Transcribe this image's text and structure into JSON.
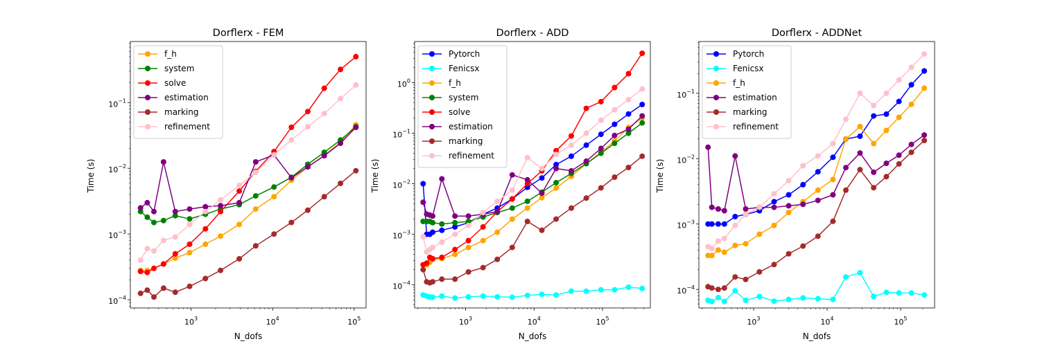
{
  "figure": {
    "background": "#ffffff"
  },
  "chart_data": [
    {
      "type": "line",
      "title": "Dorflerx - FEM",
      "xlabel": "N_dofs",
      "ylabel": "Time (s)",
      "xscale": "log",
      "yscale": "log",
      "xlim": [
        180,
        140000
      ],
      "ylim": [
        7.5e-05,
        0.85
      ],
      "xticks": [
        {
          "v": 1000,
          "label": "10^3"
        },
        {
          "v": 10000,
          "label": "10^4"
        },
        {
          "v": 100000,
          "label": "10^5"
        }
      ],
      "yticks": [
        {
          "v": 0.0001,
          "label": "10^-4"
        },
        {
          "v": 0.001,
          "label": "10^-3"
        },
        {
          "v": 0.01,
          "label": "10^-2"
        },
        {
          "v": 0.1,
          "label": "10^-1"
        }
      ],
      "legend": "top-left",
      "x": [
        240,
        290,
        350,
        460,
        640,
        960,
        1500,
        2300,
        3900,
        6200,
        10400,
        17000,
        27000,
        43000,
        68000,
        105000
      ],
      "series": [
        {
          "name": "f_h",
          "color": "#ffa500",
          "values": [
            0.00028,
            0.00028,
            0.0003,
            0.00035,
            0.00043,
            0.00052,
            0.0007,
            0.00093,
            0.0014,
            0.0024,
            0.0037,
            0.0066,
            0.0105,
            0.0158,
            0.025,
            0.046
          ]
        },
        {
          "name": "system",
          "color": "#008000",
          "values": [
            0.0022,
            0.0018,
            0.0015,
            0.0016,
            0.0019,
            0.0017,
            0.002,
            0.0024,
            0.0028,
            0.0038,
            0.0052,
            0.0073,
            0.0115,
            0.0175,
            0.027,
            0.043
          ]
        },
        {
          "name": "solve",
          "color": "#ff0000",
          "values": [
            0.00027,
            0.00026,
            0.0003,
            0.00035,
            0.0005,
            0.0007,
            0.0012,
            0.0022,
            0.0045,
            0.009,
            0.018,
            0.042,
            0.073,
            0.165,
            0.32,
            0.5
          ]
        },
        {
          "name": "estimation",
          "color": "#800080",
          "values": [
            0.0025,
            0.003,
            0.0022,
            0.0125,
            0.0022,
            0.0024,
            0.0026,
            0.0027,
            0.003,
            0.0125,
            0.016,
            0.0072,
            0.0105,
            0.0155,
            0.024,
            0.042
          ]
        },
        {
          "name": "marking",
          "color": "#a52a2a",
          "values": [
            0.000125,
            0.00014,
            0.00011,
            0.00015,
            0.00013,
            0.00016,
            0.00021,
            0.00028,
            0.00042,
            0.00066,
            0.001,
            0.0015,
            0.0023,
            0.0037,
            0.0059,
            0.0092
          ]
        },
        {
          "name": "refinement",
          "color": "#ffc0cb",
          "values": [
            0.0004,
            0.0006,
            0.00055,
            0.0008,
            0.0009,
            0.0014,
            0.0022,
            0.0033,
            0.0055,
            0.0087,
            0.016,
            0.027,
            0.043,
            0.068,
            0.115,
            0.185
          ]
        }
      ]
    },
    {
      "type": "line",
      "title": "Dorflerx - ADD",
      "xlabel": "N_dofs",
      "ylabel": "Time (s)",
      "xscale": "log",
      "yscale": "log",
      "xlim": [
        180,
        500000
      ],
      "ylim": [
        3.5e-05,
        6.5
      ],
      "xticks": [
        {
          "v": 1000,
          "label": "10^3"
        },
        {
          "v": 10000,
          "label": "10^4"
        },
        {
          "v": 100000,
          "label": "10^5"
        }
      ],
      "yticks": [
        {
          "v": 0.0001,
          "label": "10^-4"
        },
        {
          "v": 0.001,
          "label": "10^-3"
        },
        {
          "v": 0.01,
          "label": "10^-2"
        },
        {
          "v": 0.1,
          "label": "10^-1"
        },
        {
          "v": 1,
          "label": "10^0"
        }
      ],
      "legend": "top-left",
      "x": [
        240,
        270,
        300,
        330,
        450,
        700,
        1100,
        1800,
        2900,
        4800,
        8000,
        13000,
        21000,
        35000,
        58000,
        95000,
        150000,
        240000,
        380000
      ],
      "series": [
        {
          "name": "Pytorch",
          "color": "#0000ff",
          "values": [
            0.01,
            0.001,
            0.001,
            0.0011,
            0.0012,
            0.0014,
            0.0017,
            0.0025,
            0.0033,
            0.005,
            0.0085,
            0.013,
            0.024,
            0.035,
            0.058,
            0.095,
            0.15,
            0.24,
            0.37
          ]
        },
        {
          "name": "Fenicsx",
          "color": "#00ffff",
          "values": [
            6.3e-05,
            6e-05,
            5.8e-05,
            5.7e-05,
            6e-05,
            5.5e-05,
            5.8e-05,
            6e-05,
            5.8e-05,
            5.7e-05,
            6.2e-05,
            6.5e-05,
            6.3e-05,
            7.5e-05,
            7.5e-05,
            8e-05,
            8e-05,
            9e-05,
            8.5e-05
          ]
        },
        {
          "name": "f_h",
          "color": "#ffa500",
          "values": [
            0.00025,
            0.00025,
            0.00028,
            0.00032,
            0.00033,
            0.0004,
            0.00055,
            0.00075,
            0.0011,
            0.002,
            0.0033,
            0.0053,
            0.0082,
            0.014,
            0.025,
            0.042,
            0.07,
            0.13,
            0.2
          ]
        },
        {
          "name": "system",
          "color": "#008000",
          "values": [
            0.0018,
            0.0018,
            0.0018,
            0.0017,
            0.0016,
            0.0017,
            0.0018,
            0.0022,
            0.0027,
            0.0033,
            0.0045,
            0.0068,
            0.0105,
            0.016,
            0.025,
            0.04,
            0.063,
            0.1,
            0.16
          ]
        },
        {
          "name": "solve",
          "color": "#ff0000",
          "values": [
            0.00025,
            0.00027,
            0.00035,
            0.00033,
            0.00035,
            0.0005,
            0.00075,
            0.0014,
            0.0028,
            0.005,
            0.01,
            0.018,
            0.045,
            0.088,
            0.31,
            0.42,
            0.8,
            1.5,
            3.8
          ]
        },
        {
          "name": "estimation",
          "color": "#800080",
          "values": [
            0.0043,
            0.0025,
            0.0024,
            0.0023,
            0.0125,
            0.0023,
            0.0023,
            0.0025,
            0.0028,
            0.015,
            0.012,
            0.0065,
            0.02,
            0.018,
            0.028,
            0.05,
            0.09,
            0.12,
            0.22
          ]
        },
        {
          "name": "marking",
          "color": "#a52a2a",
          "values": [
            0.0002,
            0.000115,
            0.00011,
            0.000115,
            0.00013,
            0.00013,
            0.00018,
            0.00022,
            0.00032,
            0.00055,
            0.0018,
            0.0012,
            0.002,
            0.0033,
            0.0052,
            0.0083,
            0.0135,
            0.021,
            0.035
          ]
        },
        {
          "name": "refinement",
          "color": "#ffc0cb",
          "values": [
            0.0009,
            0.00045,
            0.0005,
            0.00055,
            0.0007,
            0.001,
            0.0015,
            0.0027,
            0.0045,
            0.0075,
            0.033,
            0.02,
            0.038,
            0.058,
            0.1,
            0.18,
            0.29,
            0.46,
            0.75
          ]
        }
      ]
    },
    {
      "type": "line",
      "title": "Dorflerx - ADDNet",
      "xlabel": "N_dofs",
      "ylabel": "Time (s)",
      "xscale": "log",
      "yscale": "log",
      "xlim": [
        180,
        290000
      ],
      "ylim": [
        5.2e-05,
        0.62
      ],
      "xticks": [
        {
          "v": 1000,
          "label": "10^3"
        },
        {
          "v": 10000,
          "label": "10^4"
        },
        {
          "v": 100000,
          "label": "10^5"
        }
      ],
      "yticks": [
        {
          "v": 0.0001,
          "label": "10^-4"
        },
        {
          "v": 0.001,
          "label": "10^-3"
        },
        {
          "v": 0.01,
          "label": "10^-2"
        },
        {
          "v": 0.1,
          "label": "10^-1"
        }
      ],
      "legend": "top-left",
      "x": [
        240,
        270,
        330,
        400,
        560,
        780,
        1200,
        1900,
        3000,
        4700,
        7500,
        12000,
        18000,
        28000,
        43000,
        64000,
        95000,
        140000,
        210000
      ],
      "series": [
        {
          "name": "Pytorch",
          "color": "#0000ff",
          "values": [
            0.001,
            0.001,
            0.001,
            0.001,
            0.0013,
            0.0014,
            0.0016,
            0.0022,
            0.0028,
            0.004,
            0.0063,
            0.0105,
            0.02,
            0.022,
            0.045,
            0.048,
            0.075,
            0.135,
            0.22
          ]
        },
        {
          "name": "Fenicsx",
          "color": "#00ffff",
          "values": [
            6.8e-05,
            6.5e-05,
            7.5e-05,
            6.5e-05,
            9.5e-05,
            6.8e-05,
            7.8e-05,
            6.6e-05,
            7e-05,
            7.4e-05,
            7.2e-05,
            7e-05,
            0.000155,
            0.00018,
            7.8e-05,
            9e-05,
            8.8e-05,
            8.8e-05,
            8.2e-05
          ]
        },
        {
          "name": "f_h",
          "color": "#ffa500",
          "values": [
            0.00033,
            0.00033,
            0.0004,
            0.00037,
            0.00047,
            0.0005,
            0.0007,
            0.00095,
            0.0015,
            0.0022,
            0.0033,
            0.0048,
            0.02,
            0.031,
            0.017,
            0.027,
            0.043,
            0.068,
            0.12
          ]
        },
        {
          "name": "estimation",
          "color": "#800080",
          "values": [
            0.015,
            0.0018,
            0.0017,
            0.0016,
            0.011,
            0.0017,
            0.0018,
            0.0018,
            0.0019,
            0.002,
            0.0023,
            0.0028,
            0.0073,
            0.0122,
            0.0062,
            0.0085,
            0.0113,
            0.0165,
            0.023
          ]
        },
        {
          "name": "marking",
          "color": "#a52a2a",
          "values": [
            0.00011,
            0.000105,
            0.0001,
            0.000105,
            0.000155,
            0.000142,
            0.000185,
            0.00024,
            0.00035,
            0.00046,
            0.00065,
            0.0011,
            0.0033,
            0.0068,
            0.0036,
            0.0053,
            0.0083,
            0.0125,
            0.019
          ]
        },
        {
          "name": "refinement",
          "color": "#ffc0cb",
          "values": [
            0.00045,
            0.00042,
            0.00055,
            0.0006,
            0.00095,
            0.0014,
            0.0018,
            0.0029,
            0.0046,
            0.0078,
            0.011,
            0.017,
            0.04,
            0.1,
            0.065,
            0.1,
            0.16,
            0.25,
            0.4
          ]
        }
      ]
    }
  ]
}
